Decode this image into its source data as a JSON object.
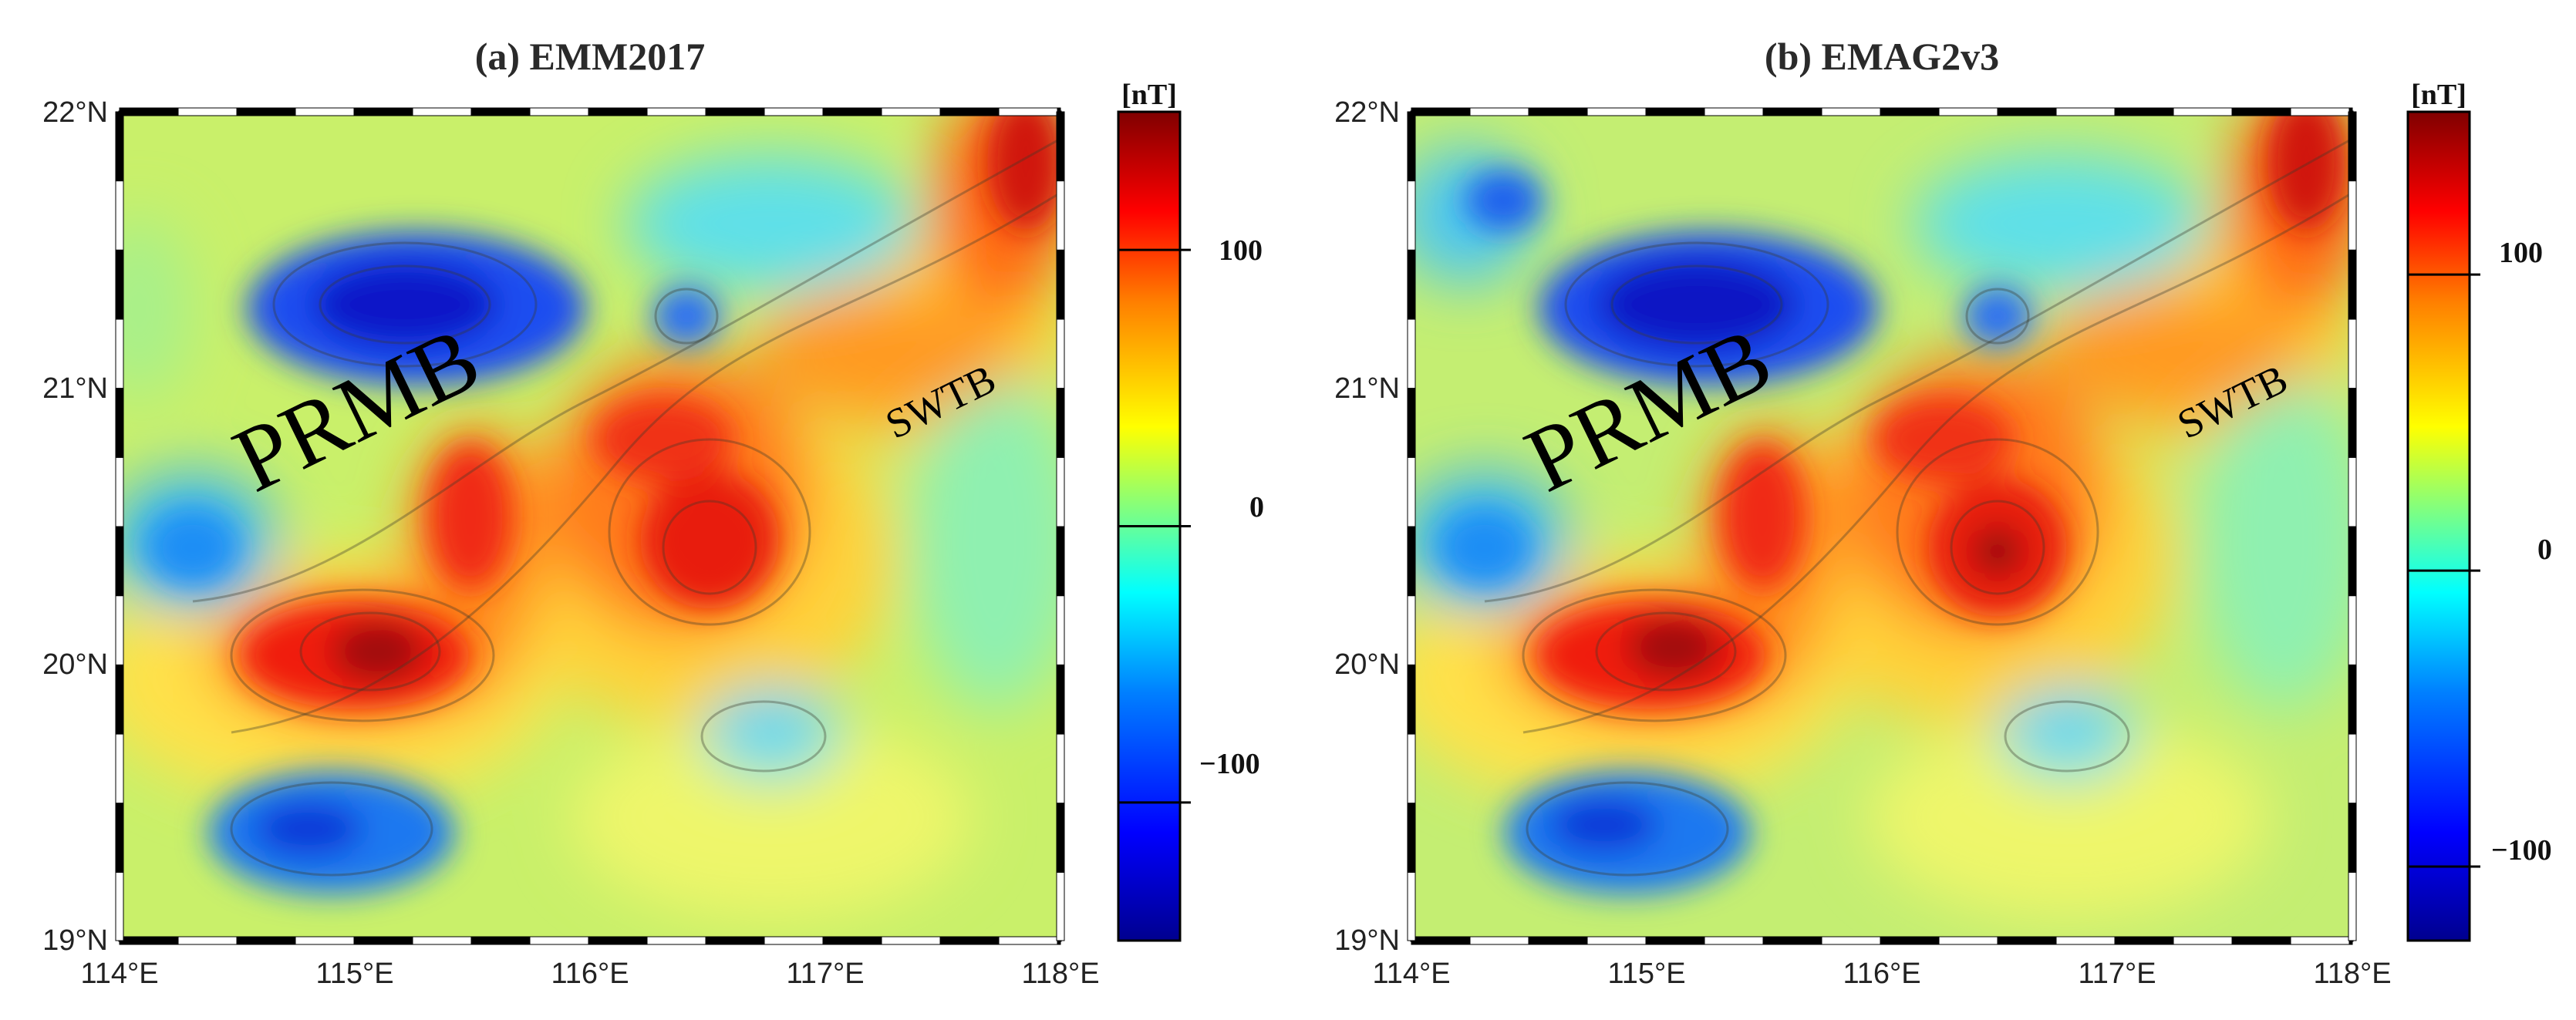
{
  "figure": {
    "panels": [
      {
        "id": "a",
        "title": "(a) EMM2017",
        "unit": "[nT]",
        "colorbar_ticks": [
          "100",
          "0",
          "−100"
        ],
        "colorbar_values": [
          100,
          0,
          -100
        ],
        "colorbar_range": [
          -150,
          150
        ],
        "regions": [
          {
            "label": "PRMB",
            "lon": 114.95,
            "lat": 20.95,
            "size": "large"
          },
          {
            "label": "SWTB",
            "lon": 117.3,
            "lat": 20.95,
            "size": "small"
          }
        ]
      },
      {
        "id": "b",
        "title": "(b) EMAG2v3",
        "unit": "[nT]",
        "colorbar_ticks": [
          "100",
          "0",
          "−100"
        ],
        "colorbar_values": [
          100,
          0,
          -100
        ],
        "colorbar_range": [
          -125,
          155
        ],
        "regions": [
          {
            "label": "PRMB",
            "lon": 114.95,
            "lat": 20.95,
            "size": "large"
          },
          {
            "label": "SWTB",
            "lon": 117.3,
            "lat": 20.95,
            "size": "small"
          }
        ]
      }
    ],
    "lon_ticks": [
      "114°E",
      "115°E",
      "116°E",
      "117°E",
      "118°E"
    ],
    "lat_ticks": [
      "22°N",
      "21°N",
      "20°N",
      "19°N"
    ],
    "lon_range": [
      114,
      118
    ],
    "lat_range": [
      19,
      22
    ],
    "colormap": [
      "#00008f",
      "#0000ff",
      "#0080ff",
      "#00ffff",
      "#80ff80",
      "#ffff00",
      "#ff8000",
      "#ff0000",
      "#800000"
    ]
  }
}
